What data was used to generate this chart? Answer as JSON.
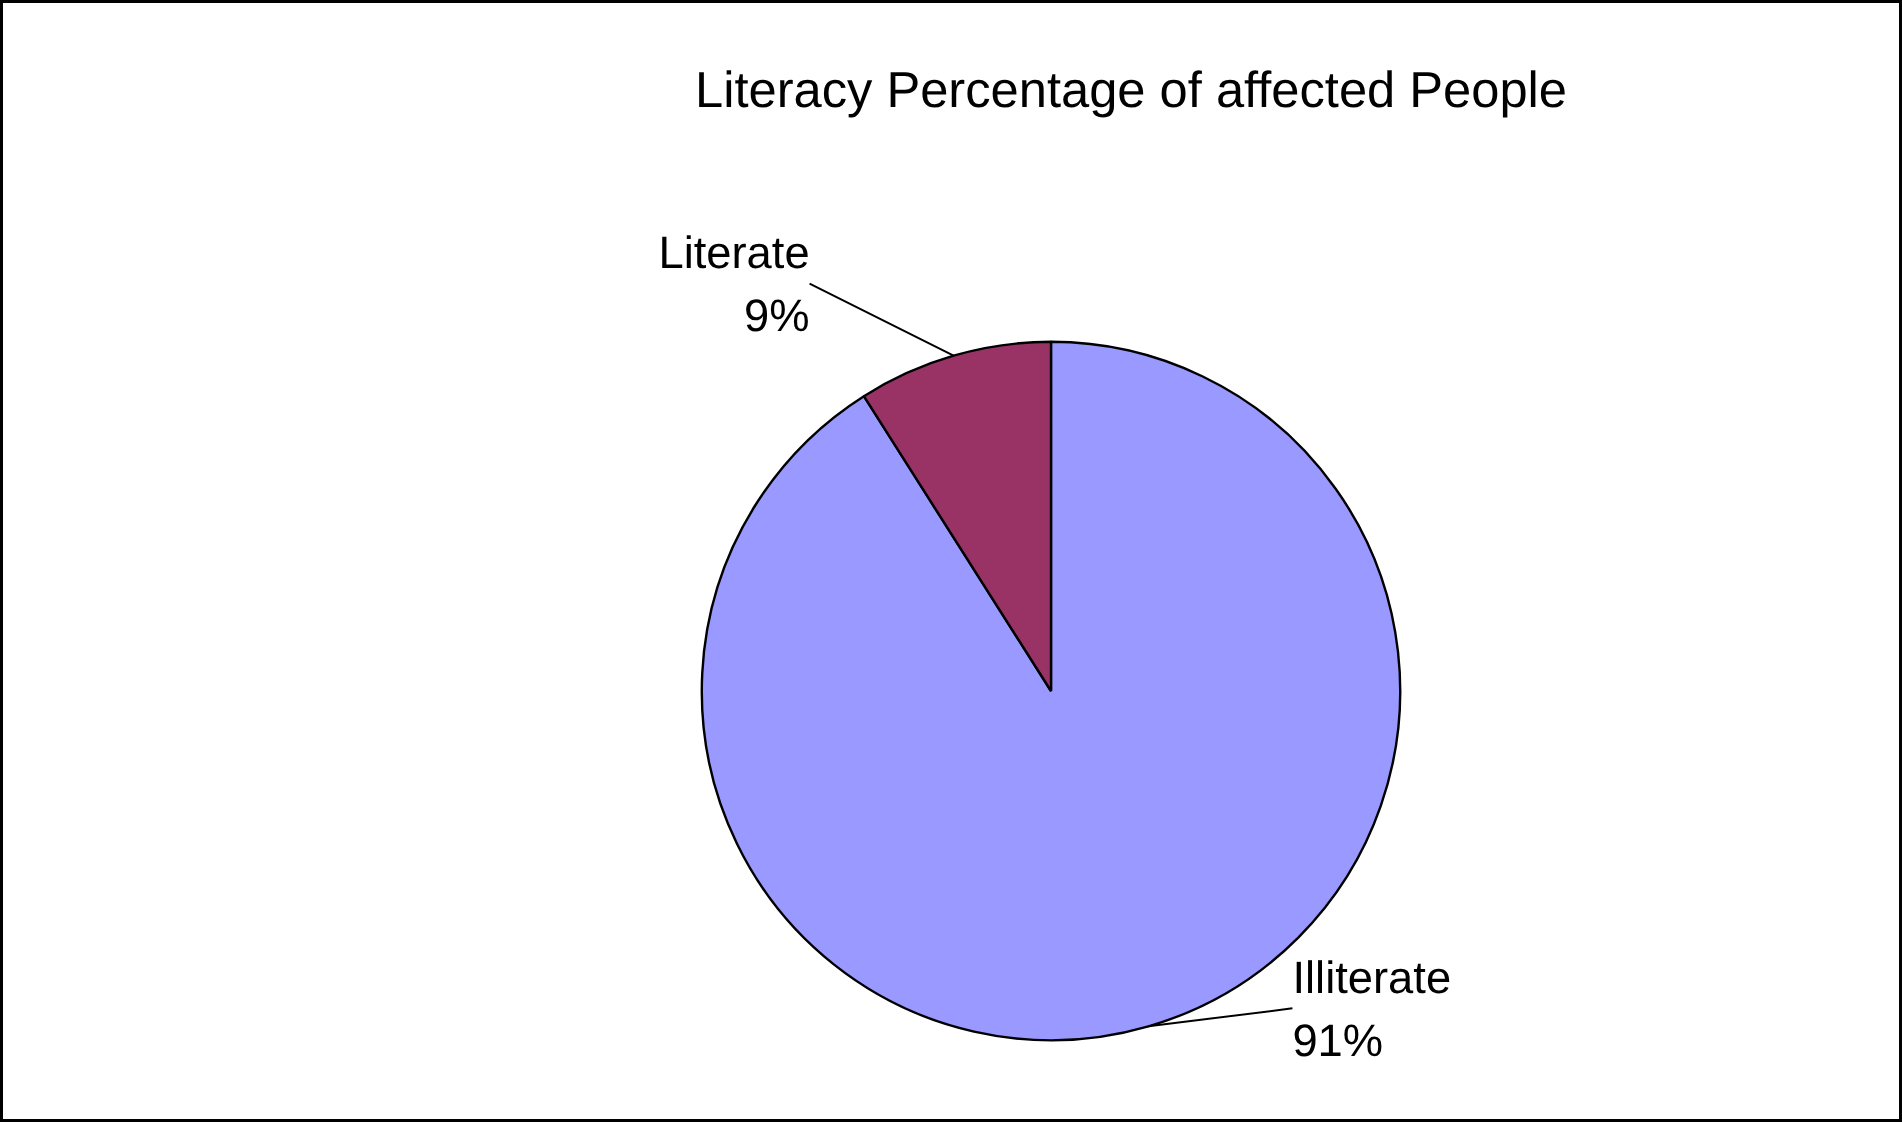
{
  "chart_data": {
    "type": "pie",
    "title": "Literacy Percentage of affected People",
    "categories": [
      "Illiterate",
      "Literate"
    ],
    "values": [
      91,
      9
    ],
    "colors": [
      "#9999ff",
      "#993366"
    ],
    "value_labels": [
      "91%",
      "9%"
    ]
  }
}
